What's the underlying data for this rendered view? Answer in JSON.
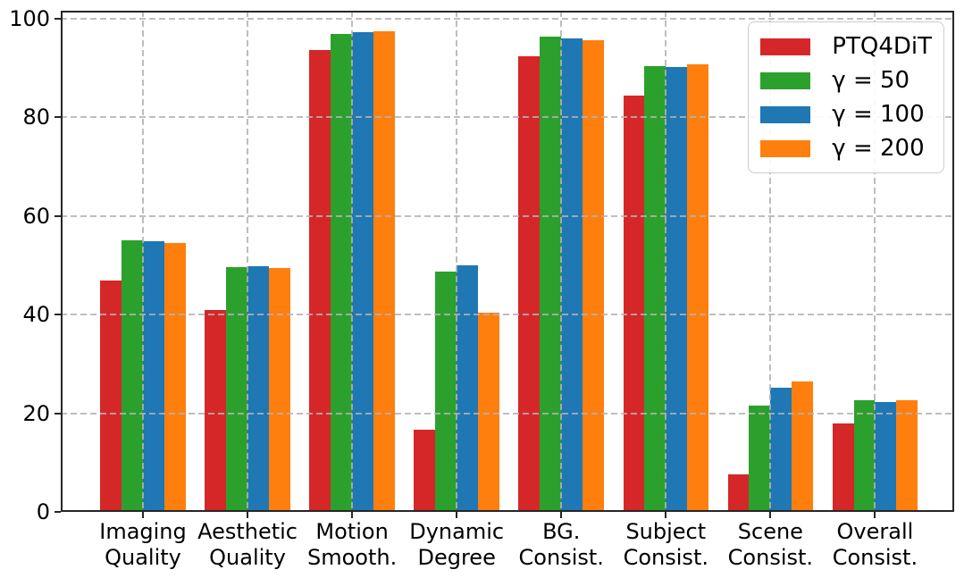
{
  "chart_data": {
    "type": "bar",
    "title": "",
    "xlabel": "",
    "ylabel": "",
    "ylim": [
      0,
      101.6
    ],
    "yticks": [
      0,
      20,
      40,
      60,
      80,
      100
    ],
    "grid": true,
    "grid_style": "dashed",
    "legend_position": "upper right",
    "categories": [
      {
        "lines": [
          "Imaging",
          "Quality"
        ],
        "slug": "imaging-quality"
      },
      {
        "lines": [
          "Aesthetic",
          "Quality"
        ],
        "slug": "aesthetic-quality"
      },
      {
        "lines": [
          "Motion",
          "Smooth."
        ],
        "slug": "motion-smooth"
      },
      {
        "lines": [
          "Dynamic",
          "Degree"
        ],
        "slug": "dynamic-degree"
      },
      {
        "lines": [
          "BG.",
          "Consist."
        ],
        "slug": "bg-consist"
      },
      {
        "lines": [
          "Subject",
          "Consist."
        ],
        "slug": "subject-consist"
      },
      {
        "lines": [
          "Scene",
          "Consist."
        ],
        "slug": "scene-consist"
      },
      {
        "lines": [
          "Overall",
          "Consist."
        ],
        "slug": "overall-consist"
      }
    ],
    "series": [
      {
        "name": "PTQ4DiT",
        "slug": "ptq4dit",
        "color": "#d62728",
        "values": [
          47.0,
          41.0,
          93.7,
          16.7,
          92.4,
          84.5,
          7.6,
          18.0
        ]
      },
      {
        "name": "γ = 50",
        "slug": "gamma-50",
        "color": "#2ca02c",
        "values": [
          55.1,
          49.6,
          97.0,
          48.7,
          96.3,
          90.4,
          21.6,
          22.7
        ]
      },
      {
        "name": "γ = 100",
        "slug": "gamma-100",
        "color": "#1f77b4",
        "values": [
          54.9,
          49.8,
          97.2,
          50.0,
          96.0,
          90.2,
          25.1,
          22.3
        ]
      },
      {
        "name": "γ = 200",
        "slug": "gamma-200",
        "color": "#ff7f0e",
        "values": [
          54.5,
          49.5,
          97.4,
          40.4,
          95.6,
          90.7,
          26.4,
          22.6
        ]
      }
    ]
  }
}
